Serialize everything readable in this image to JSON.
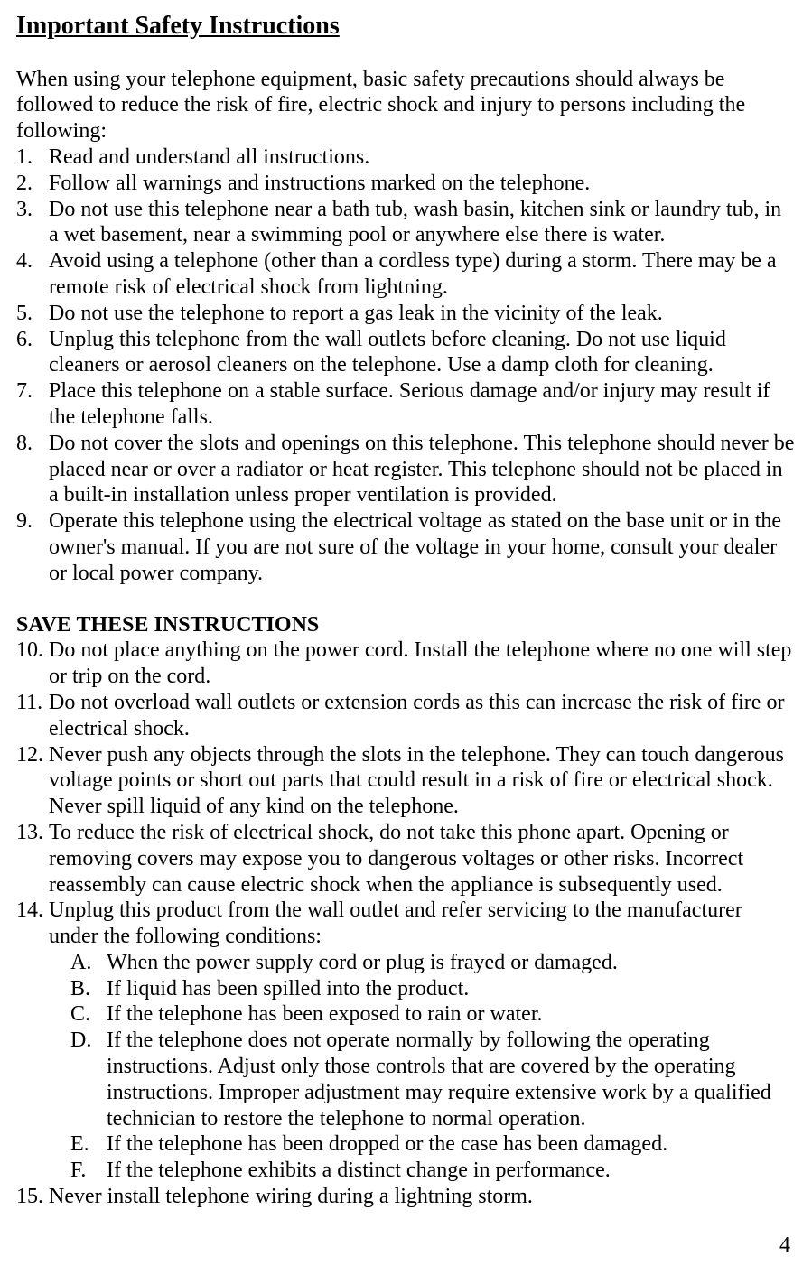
{
  "page": {
    "title": "Important Safety Instructions",
    "intro": "When using your telephone equipment, basic safety precautions should always be followed to reduce the risk of fire, electric shock and injury to persons including the following:",
    "subheading": "SAVE THESE INSTRUCTIONS",
    "pageNumber": "4",
    "fontFamily": "Times New Roman",
    "titleFontSize": 28,
    "bodyFontSize": 24,
    "textColor": "#000000",
    "backgroundColor": "#ffffff"
  },
  "list1": [
    {
      "n": "1.",
      "t": "Read and understand all instructions."
    },
    {
      "n": "2.",
      "t": "Follow all warnings and instructions marked on the telephone."
    },
    {
      "n": "3.",
      "t": "Do not use this telephone near a bath tub, wash basin, kitchen sink or laundry tub, in a wet basement, near a swimming pool or anywhere else there is water."
    },
    {
      "n": "4.",
      "t": "Avoid using a telephone (other than a cordless type) during a storm. There may be a remote risk of electrical shock from lightning."
    },
    {
      "n": "5.",
      "t": "Do not use the telephone to report a gas leak in the vicinity of the leak."
    },
    {
      "n": "6.",
      "t": "Unplug this telephone from the wall outlets before cleaning. Do not use liquid cleaners or aerosol cleaners on the telephone. Use a damp cloth for cleaning."
    },
    {
      "n": "7.",
      "t": "Place this telephone on a stable surface. Serious damage and/or injury may result if the telephone falls."
    },
    {
      "n": "8.",
      "t": "Do not cover the slots and openings on this telephone. This telephone should never be placed near or over a radiator or heat register. This telephone should not be placed in a built-in installation unless proper ventilation is provided."
    },
    {
      "n": "9.",
      "t": "Operate this telephone using the electrical voltage as stated on the base unit or in the owner's manual. If you are not sure of the voltage in your home, consult your dealer or local power company."
    }
  ],
  "list2": [
    {
      "n": "10.",
      "t": "Do not place anything on the power cord. Install the telephone where no one will step or trip on the cord."
    },
    {
      "n": "11.",
      "t": "Do not overload wall outlets or extension cords as this can increase the risk of fire or electrical shock."
    },
    {
      "n": "12.",
      "t": "Never push any objects through the slots in the telephone. They can touch dangerous voltage points or short out parts that could result in a risk of fire or electrical shock. Never spill liquid of any kind on the telephone."
    },
    {
      "n": "13.",
      "t": "To reduce the risk of electrical shock, do not take this phone apart. Opening or removing covers may expose you to dangerous voltages or other risks. Incorrect reassembly can cause electric shock when the appliance is subsequently used."
    },
    {
      "n": "14.",
      "t": "Unplug this product from the wall outlet and refer servicing to the manufacturer under the following conditions:"
    }
  ],
  "sublist": [
    {
      "n": "A.",
      "t": "When the power supply cord or plug is frayed or damaged."
    },
    {
      "n": "B.",
      "t": "If liquid has been spilled into the product."
    },
    {
      "n": "C.",
      "t": "If the telephone has been exposed to rain or water."
    },
    {
      "n": "D.",
      "t": "If the telephone does not operate normally by following the operating instructions. Adjust only those controls that are covered by the operating instructions. Improper adjustment may require extensive work by a qualified technician to restore the telephone to normal operation."
    },
    {
      "n": "E.",
      "t": "If the telephone has been dropped or the case has been damaged."
    },
    {
      "n": "F.",
      "t": "If the telephone exhibits a distinct change in performance."
    }
  ],
  "list3": [
    {
      "n": "15.",
      "t": "Never install telephone wiring during a lightning storm."
    }
  ]
}
